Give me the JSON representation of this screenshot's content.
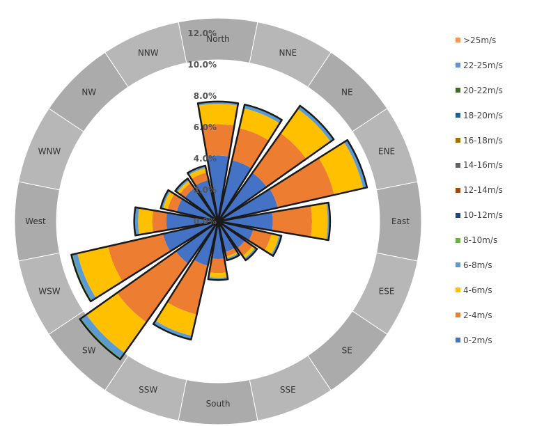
{
  "chart_data": {
    "type": "wind-rose",
    "title": "",
    "radial_axis": {
      "unit": "%",
      "ticks": [
        "0.0%",
        "2.0%",
        "4.0%",
        "6.0%",
        "8.0%",
        "10.0%",
        "12.0%"
      ],
      "range": [
        0,
        12
      ]
    },
    "directions": [
      "North",
      "NNE",
      "NE",
      "ENE",
      "East",
      "ESE",
      "SE",
      "SSE",
      "South",
      "SSW",
      "SW",
      "WSW",
      "West",
      "WNW",
      "NW",
      "NNW"
    ],
    "series": [
      {
        "name": "0-2m/s",
        "color": "#4472C4",
        "values": [
          4.2,
          4.0,
          3.8,
          3.9,
          3.5,
          2.3,
          2.1,
          2.0,
          2.4,
          2.9,
          3.3,
          3.6,
          3.3,
          2.7,
          2.6,
          2.7
        ]
      },
      {
        "name": "2-4m/s",
        "color": "#ED7D31",
        "values": [
          2.0,
          2.1,
          3.1,
          3.7,
          2.5,
          1.2,
          0.6,
          0.3,
          0.9,
          3.2,
          4.6,
          3.6,
          0.9,
          0.6,
          0.4,
          0.5
        ]
      },
      {
        "name": "4-6m/s",
        "color": "#FFC000",
        "values": [
          1.3,
          1.3,
          1.9,
          1.9,
          1.0,
          0.5,
          0.2,
          0.1,
          0.3,
          1.4,
          2.4,
          2.0,
          0.9,
          0.3,
          0.2,
          0.3
        ]
      },
      {
        "name": "6-8m/s",
        "color": "#5B9BD5",
        "values": [
          0.1,
          0.2,
          0.2,
          0.2,
          0.1,
          0.1,
          0.1,
          0.1,
          0.1,
          0.2,
          0.4,
          0.3,
          0.2,
          0.1,
          0.1,
          0.1
        ]
      },
      {
        "name": "8-10m/s",
        "color": "#70AD47",
        "values": [
          0.05,
          0.05,
          0.05,
          0.05,
          0.05,
          0.05,
          0.05,
          0.05,
          0.05,
          0.05,
          0.1,
          0.1,
          0.05,
          0.05,
          0.05,
          0.05
        ]
      },
      {
        "name": "10-12m/s",
        "color": "#264478",
        "values": [
          0,
          0,
          0,
          0,
          0,
          0,
          0,
          0,
          0,
          0,
          0,
          0,
          0,
          0,
          0,
          0
        ]
      },
      {
        "name": "12-14m/s",
        "color": "#9E480E",
        "values": [
          0,
          0,
          0,
          0,
          0,
          0,
          0,
          0,
          0,
          0,
          0,
          0,
          0,
          0,
          0,
          0
        ]
      },
      {
        "name": "14-16m/s",
        "color": "#636363",
        "values": [
          0,
          0,
          0,
          0,
          0,
          0,
          0,
          0,
          0,
          0,
          0,
          0,
          0,
          0,
          0,
          0
        ]
      },
      {
        "name": "16-18m/s",
        "color": "#997300",
        "values": [
          0,
          0,
          0,
          0,
          0,
          0,
          0,
          0,
          0,
          0,
          0,
          0,
          0,
          0,
          0,
          0
        ]
      },
      {
        "name": "18-20m/s",
        "color": "#255E91",
        "values": [
          0,
          0,
          0,
          0,
          0,
          0,
          0,
          0,
          0,
          0,
          0,
          0,
          0,
          0,
          0,
          0
        ]
      },
      {
        "name": "20-22m/s",
        "color": "#43682B",
        "values": [
          0,
          0,
          0,
          0,
          0,
          0,
          0,
          0,
          0,
          0,
          0,
          0,
          0,
          0,
          0,
          0
        ]
      },
      {
        "name": "22-25m/s",
        "color": "#698ED0",
        "values": [
          0,
          0,
          0,
          0,
          0,
          0,
          0,
          0,
          0,
          0,
          0,
          0,
          0,
          0,
          0,
          0
        ]
      },
      {
        "name": ">25m/s",
        "color": "#F1975A",
        "values": [
          0,
          0,
          0,
          0,
          0,
          0,
          0,
          0,
          0,
          0,
          0,
          0,
          0,
          0,
          0,
          0
        ]
      }
    ],
    "legend": {
      "placement": "right",
      "order": [
        ">25m/s",
        "22-25m/s",
        "20-22m/s",
        "18-20m/s",
        "16-18m/s",
        "14-16m/s",
        "12-14m/s",
        "10-12m/s",
        "8-10m/s",
        "6-8m/s",
        "4-6m/s",
        "2-4m/s",
        "0-2m/s"
      ]
    },
    "grid": false
  }
}
